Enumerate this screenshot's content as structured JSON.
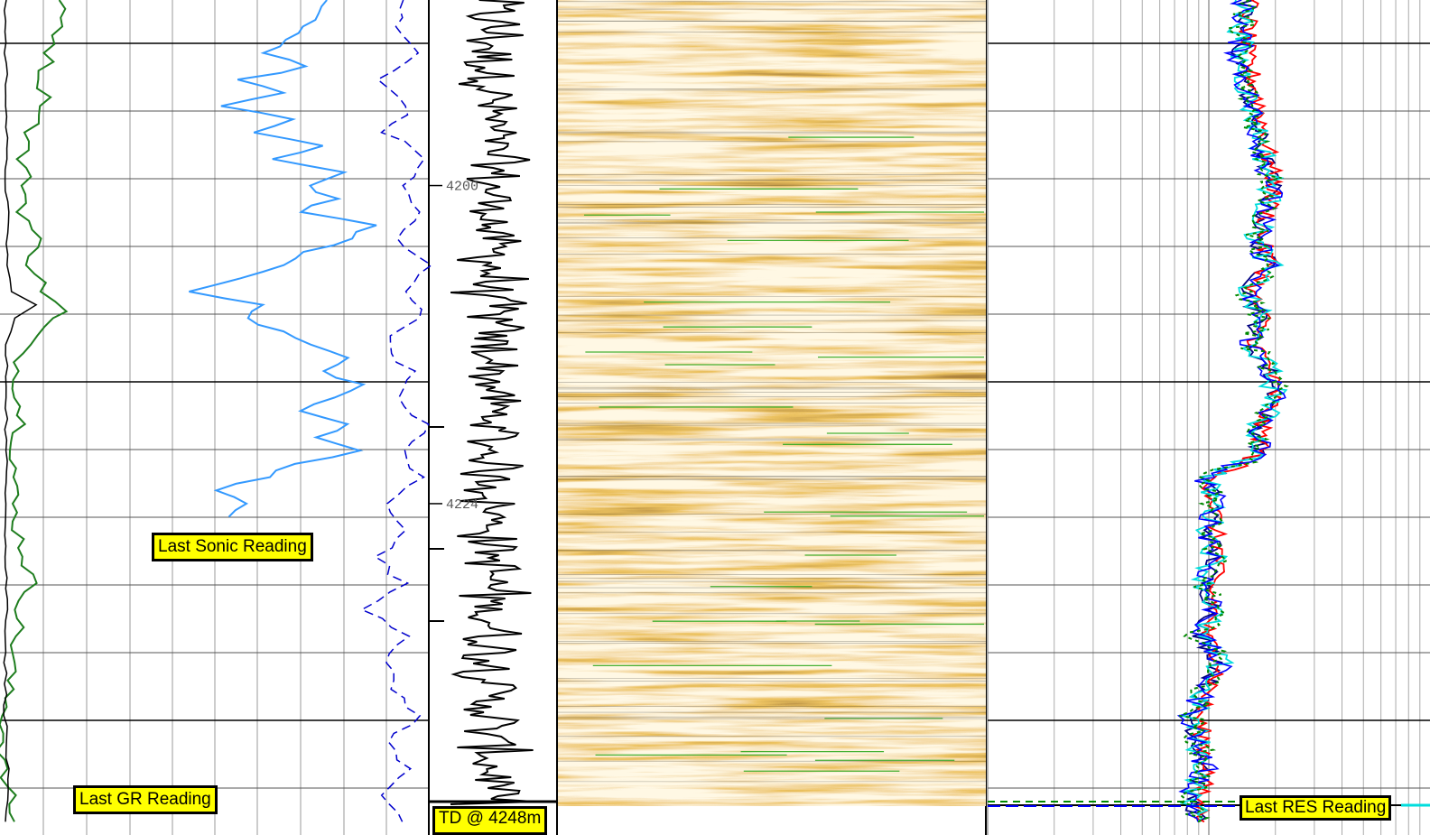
{
  "log_view": {
    "depth_unit": "m",
    "depth_markers": [
      {
        "depth": 4200,
        "label": "4200"
      },
      {
        "depth": 4224,
        "label": "4224"
      }
    ],
    "depth_range": [
      4186,
      4249
    ],
    "image_track": {
      "kind": "borehole-image",
      "palette": {
        "dark": "#6b3a0c",
        "mid": "#d98b1f",
        "light": "#fff0c8"
      },
      "feature_line_color": "#33aa22"
    },
    "callouts": {
      "sonic": "Last Sonic Reading",
      "gr": "Last GR Reading",
      "td": "TD @ 4248m",
      "res": "Last RES Reading"
    },
    "colors": {
      "gr": "#1e7d1e",
      "sonic": "#3399ff",
      "sonic_secondary": "#0000cc",
      "caliper": "#000000",
      "res_deep": "#000080",
      "res_medium": "#0000ff",
      "res_shallow": "#00dddd",
      "res_micro": "#008800",
      "res_other": "#ff0000"
    }
  },
  "chart_data": {
    "type": "line",
    "title": "",
    "ylabel": "",
    "y_axis": "depth",
    "y_reversed": true,
    "ylim": [
      4186,
      4249
    ],
    "series": [
      {
        "key": "gr",
        "track": 1,
        "color": "#1e7d1e",
        "points": [
          [
            4186,
            32
          ],
          [
            4188,
            34
          ],
          [
            4190,
            28
          ],
          [
            4192,
            23
          ],
          [
            4194,
            26
          ],
          [
            4196,
            17
          ],
          [
            4198,
            12
          ],
          [
            4200,
            15
          ],
          [
            4202,
            13
          ],
          [
            4204,
            20
          ],
          [
            4206,
            18
          ],
          [
            4208,
            25
          ],
          [
            4209.5,
            35
          ],
          [
            4210,
            28
          ],
          [
            4212,
            14
          ],
          [
            4214,
            10
          ],
          [
            4216,
            11
          ],
          [
            4218,
            12
          ],
          [
            4220,
            9
          ],
          [
            4222,
            8
          ],
          [
            4224,
            7
          ],
          [
            4226,
            10
          ],
          [
            4228,
            14
          ],
          [
            4230,
            17
          ],
          [
            4232,
            12
          ],
          [
            4234,
            9
          ],
          [
            4236,
            7
          ],
          [
            4238,
            4
          ],
          [
            4240,
            3
          ],
          [
            4242,
            2
          ],
          [
            4244,
            1
          ],
          [
            4246,
            5
          ],
          [
            4248,
            8
          ]
        ]
      },
      {
        "key": "caliper",
        "track": 1,
        "color": "#000000",
        "points": [
          [
            4186,
            3
          ],
          [
            4190,
            3
          ],
          [
            4194,
            4
          ],
          [
            4198,
            3
          ],
          [
            4202,
            4
          ],
          [
            4206,
            4
          ],
          [
            4208,
            6
          ],
          [
            4209,
            21
          ],
          [
            4210,
            8
          ],
          [
            4212,
            3
          ],
          [
            4216,
            4
          ],
          [
            4220,
            3
          ],
          [
            4224,
            4
          ],
          [
            4228,
            3
          ],
          [
            4232,
            4
          ],
          [
            4236,
            3
          ],
          [
            4240,
            3
          ],
          [
            4244,
            4
          ],
          [
            4248,
            3
          ]
        ]
      },
      {
        "key": "sonic",
        "track": 2,
        "color": "#3399ff",
        "points": [
          [
            4186,
            60
          ],
          [
            4188,
            55
          ],
          [
            4190,
            40
          ],
          [
            4191,
            55
          ],
          [
            4192,
            30
          ],
          [
            4193,
            45
          ],
          [
            4194,
            20
          ],
          [
            4195,
            50
          ],
          [
            4196,
            35
          ],
          [
            4197,
            60
          ],
          [
            4198,
            40
          ],
          [
            4199,
            70
          ],
          [
            4200,
            55
          ],
          [
            4201,
            65
          ],
          [
            4202,
            50
          ],
          [
            4203,
            80
          ],
          [
            4204,
            70
          ],
          [
            4205,
            55
          ],
          [
            4206,
            45
          ],
          [
            4207,
            30
          ],
          [
            4208,
            10
          ],
          [
            4209,
            40
          ],
          [
            4210,
            30
          ],
          [
            4211,
            45
          ],
          [
            4212,
            55
          ],
          [
            4213,
            70
          ],
          [
            4214,
            60
          ],
          [
            4215,
            75
          ],
          [
            4216,
            65
          ],
          [
            4217,
            50
          ],
          [
            4218,
            70
          ],
          [
            4219,
            60
          ],
          [
            4220,
            75
          ],
          [
            4221,
            50
          ],
          [
            4222,
            40
          ],
          [
            4223,
            20
          ],
          [
            4224,
            30
          ],
          [
            4225,
            25
          ]
        ]
      },
      {
        "key": "sonic_secondary",
        "track": 2,
        "color": "#0000cc",
        "points": [
          [
            4186,
            95
          ],
          [
            4188,
            92
          ],
          [
            4190,
            98
          ],
          [
            4192,
            88
          ],
          [
            4194,
            96
          ],
          [
            4196,
            90
          ],
          [
            4198,
            100
          ],
          [
            4200,
            94
          ],
          [
            4202,
            98
          ],
          [
            4204,
            92
          ],
          [
            4206,
            100
          ],
          [
            4208,
            96
          ],
          [
            4210,
            98
          ],
          [
            4212,
            90
          ],
          [
            4214,
            96
          ],
          [
            4216,
            92
          ],
          [
            4218,
            100
          ],
          [
            4220,
            94
          ],
          [
            4222,
            98
          ],
          [
            4224,
            90
          ],
          [
            4226,
            96
          ],
          [
            4228,
            88
          ],
          [
            4230,
            94
          ],
          [
            4232,
            86
          ],
          [
            4234,
            96
          ],
          [
            4236,
            90
          ],
          [
            4238,
            92
          ],
          [
            4240,
            98
          ],
          [
            4242,
            90
          ],
          [
            4244,
            96
          ],
          [
            4246,
            90
          ],
          [
            4248,
            94
          ]
        ]
      },
      {
        "key": "res_deep",
        "track": 4,
        "color": "#000080",
        "points": [
          [
            4186,
            20
          ],
          [
            4190,
            18
          ],
          [
            4194,
            22
          ],
          [
            4198,
            28
          ],
          [
            4200,
            32
          ],
          [
            4202,
            28
          ],
          [
            4204,
            24
          ],
          [
            4206,
            30
          ],
          [
            4208,
            20
          ],
          [
            4210,
            26
          ],
          [
            4212,
            22
          ],
          [
            4214,
            30
          ],
          [
            4216,
            34
          ],
          [
            4218,
            25
          ],
          [
            4220,
            26
          ],
          [
            4222,
            10
          ],
          [
            4224,
            12
          ],
          [
            4226,
            11
          ],
          [
            4228,
            12
          ],
          [
            4230,
            10
          ],
          [
            4232,
            12
          ],
          [
            4234,
            9
          ],
          [
            4236,
            13
          ],
          [
            4238,
            10
          ],
          [
            4240,
            8
          ],
          [
            4242,
            9
          ],
          [
            4244,
            10
          ],
          [
            4246,
            8
          ],
          [
            4248,
            9
          ]
        ]
      },
      {
        "key": "res_other",
        "track": 4,
        "color": "#ff0000",
        "points": [
          [
            4186,
            22
          ],
          [
            4190,
            20
          ],
          [
            4194,
            26
          ],
          [
            4198,
            30
          ],
          [
            4200,
            33
          ],
          [
            4202,
            30
          ],
          [
            4204,
            26
          ],
          [
            4206,
            31
          ],
          [
            4208,
            22
          ],
          [
            4210,
            27
          ],
          [
            4212,
            24
          ],
          [
            4214,
            31
          ],
          [
            4216,
            33
          ],
          [
            4218,
            26
          ],
          [
            4220,
            27
          ],
          [
            4222,
            11
          ],
          [
            4224,
            12
          ],
          [
            4226,
            12
          ],
          [
            4228,
            13
          ],
          [
            4230,
            11
          ],
          [
            4232,
            12
          ],
          [
            4234,
            10
          ],
          [
            4236,
            14
          ],
          [
            4238,
            11
          ],
          [
            4240,
            9
          ],
          [
            4242,
            10
          ],
          [
            4244,
            11
          ],
          [
            4246,
            9
          ],
          [
            4248,
            10
          ]
        ]
      }
    ]
  }
}
